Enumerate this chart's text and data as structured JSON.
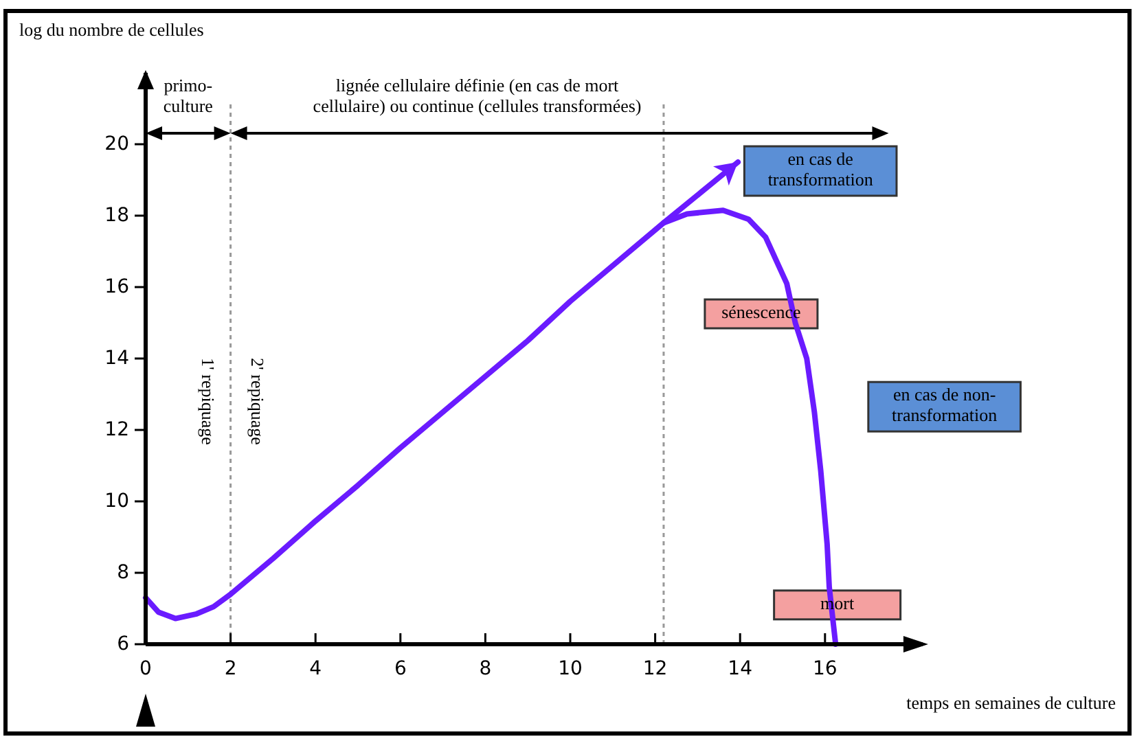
{
  "chart_data": {
    "type": "line",
    "xlabel": "temps en semaines de culture",
    "ylabel": "log du nombre de cellules",
    "xlim": [
      0,
      18.3
    ],
    "ylim": [
      6,
      22
    ],
    "xticks": [
      0,
      2,
      4,
      6,
      8,
      10,
      12,
      14,
      16
    ],
    "yticks": [
      6,
      8,
      10,
      12,
      14,
      16,
      18,
      20
    ],
    "grid": false,
    "line_style": "solid",
    "series": [
      {
        "color": "#6a1bff",
        "x": [
          0,
          0.3,
          0.7,
          1.2,
          1.6,
          2,
          3,
          4,
          5,
          6,
          7,
          8,
          9,
          10,
          11,
          12.2,
          13.95
        ],
        "values": [
          7.3,
          6.9,
          6.72,
          6.85,
          7.05,
          7.4,
          8.4,
          9.45,
          10.45,
          11.5,
          12.5,
          13.5,
          14.5,
          15.6,
          16.6,
          17.8,
          19.5
        ]
      },
      {
        "color": "#6a1bff",
        "x": [
          12.2,
          12.75,
          13.6,
          14.2,
          14.6,
          15.1,
          15.3,
          15.57,
          15.75,
          15.9,
          16.05,
          16.1,
          16.25
        ],
        "values": [
          17.8,
          18.05,
          18.15,
          17.9,
          17.4,
          16.1,
          15,
          14,
          12.5,
          10.85,
          8.8,
          7.6,
          6
        ]
      }
    ],
    "ref_lines": [
      {
        "axis": "x",
        "value": 2,
        "label": "1' repiquage",
        "line_style": "dotted",
        "color": "#999999"
      },
      {
        "axis": "x",
        "value": 12.2,
        "label": null,
        "line_style": "dotted",
        "color": "#999999"
      }
    ],
    "annotations": [
      "primo-\nculture",
      "lignée cellulaire définie (en cas de mort\ncellulaire) ou continue (cellules transformées)",
      "2' repiquage",
      "en cas de\ntransformation",
      "sénescence",
      "en cas de non-\ntransformation",
      "mort"
    ]
  }
}
